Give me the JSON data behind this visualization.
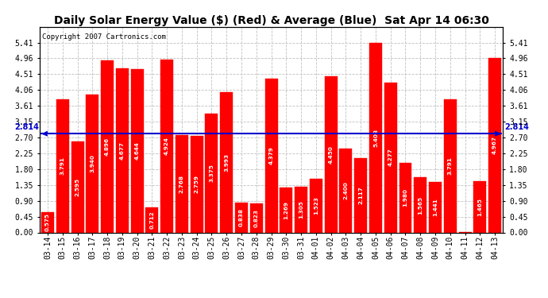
{
  "title": "Daily Solar Energy Value ($) (Red) & Average (Blue)  Sat Apr 14 06:30",
  "copyright": "Copyright 2007 Cartronics.com",
  "average": 2.814,
  "categories": [
    "03-14",
    "03-15",
    "03-16",
    "03-17",
    "03-18",
    "03-19",
    "03-20",
    "03-21",
    "03-22",
    "03-23",
    "03-24",
    "03-25",
    "03-26",
    "03-27",
    "03-28",
    "03-29",
    "03-30",
    "03-31",
    "04-01",
    "04-02",
    "04-03",
    "04-04",
    "04-05",
    "04-06",
    "04-07",
    "04-08",
    "04-09",
    "04-10",
    "04-11",
    "04-12",
    "04-13"
  ],
  "values": [
    0.575,
    3.791,
    2.595,
    3.94,
    4.896,
    4.677,
    4.644,
    0.712,
    4.924,
    2.768,
    2.759,
    3.375,
    3.993,
    0.838,
    0.823,
    4.379,
    1.269,
    1.305,
    1.523,
    4.45,
    2.4,
    2.117,
    5.408,
    4.277,
    1.98,
    1.565,
    1.441,
    3.791,
    0.006,
    1.465,
    4.967
  ],
  "bar_color": "#ff0000",
  "avg_line_color": "#0000cc",
  "background_color": "#ffffff",
  "plot_bg_color": "#ffffff",
  "grid_color": "#c0c0c0",
  "ylim": [
    0,
    5.86
  ],
  "yticks": [
    0.0,
    0.45,
    0.9,
    1.35,
    1.8,
    2.25,
    2.7,
    3.15,
    3.61,
    4.06,
    4.51,
    4.96,
    5.41
  ],
  "title_fontsize": 10,
  "copyright_fontsize": 6.5,
  "bar_value_fontsize": 5.2,
  "tick_fontsize": 7
}
